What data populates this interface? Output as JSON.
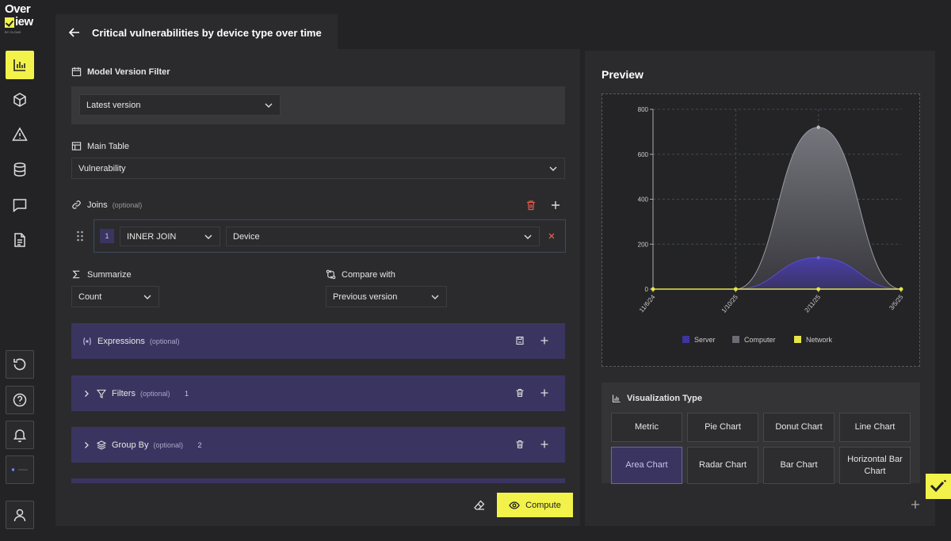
{
  "app": {
    "logo_line1": "Over",
    "logo_line2": "iew",
    "logo_tagline": "BY CLOUD"
  },
  "sidebar": {
    "items": [
      {
        "name": "charts",
        "icon": "bar-chart-icon",
        "active": true
      },
      {
        "name": "packages",
        "icon": "box-icon",
        "active": false
      },
      {
        "name": "alerts",
        "icon": "warning-icon",
        "active": false
      },
      {
        "name": "database",
        "icon": "database-icon",
        "active": false
      },
      {
        "name": "messages",
        "icon": "message-icon",
        "active": false
      },
      {
        "name": "documents",
        "icon": "document-icon",
        "active": false
      }
    ],
    "bottom": [
      {
        "name": "history",
        "icon": "history-icon"
      },
      {
        "name": "help",
        "icon": "help-icon"
      },
      {
        "name": "notifications",
        "icon": "bell-icon"
      },
      {
        "name": "workspace",
        "icon": "workspace-icon"
      },
      {
        "name": "profile",
        "icon": "user-icon"
      }
    ]
  },
  "header": {
    "title": "Critical vulnerabilities by device type over time"
  },
  "model_filter": {
    "label": "Model Version Filter",
    "value": "Latest version"
  },
  "main_table": {
    "label": "Main Table",
    "value": "Vulnerability"
  },
  "joins": {
    "label": "Joins",
    "optional": "(optional)",
    "rows": [
      {
        "index": "1",
        "type": "INNER JOIN",
        "table": "Device"
      }
    ]
  },
  "summarize": {
    "label": "Summarize",
    "value": "Count"
  },
  "compare": {
    "label": "Compare with",
    "value": "Previous version"
  },
  "sections": [
    {
      "name": "expressions",
      "label": "Expressions",
      "optional": "(optional)",
      "count": ""
    },
    {
      "name": "filters",
      "label": "Filters",
      "optional": "(optional)",
      "count": "1"
    },
    {
      "name": "group-by",
      "label": "Group By",
      "optional": "(optional)",
      "count": "2"
    }
  ],
  "actions": {
    "compute_label": "Compute"
  },
  "preview": {
    "title": "Preview"
  },
  "chart_data": {
    "type": "area",
    "x": [
      "11/6/24",
      "1/10/25",
      "2/11/25",
      "3/5/25"
    ],
    "series": [
      {
        "name": "Server",
        "color": "#3d35a0",
        "values": [
          0,
          0,
          140,
          0
        ]
      },
      {
        "name": "Computer",
        "color": "#6b6b73",
        "values": [
          0,
          0,
          720,
          0
        ]
      },
      {
        "name": "Network",
        "color": "#e6e64a",
        "values": [
          0,
          0,
          0,
          0
        ]
      }
    ],
    "y_ticks": [
      "0",
      "200",
      "400",
      "600",
      "800"
    ],
    "ylim": [
      0,
      800
    ],
    "grid": true,
    "legend_position": "bottom"
  },
  "visualization": {
    "label": "Visualization Type",
    "types": [
      {
        "label": "Metric",
        "active": false
      },
      {
        "label": "Pie Chart",
        "active": false
      },
      {
        "label": "Donut Chart",
        "active": false
      },
      {
        "label": "Line Chart",
        "active": false
      },
      {
        "label": "Area Chart",
        "active": true
      },
      {
        "label": "Radar Chart",
        "active": false
      },
      {
        "label": "Bar Chart",
        "active": false
      },
      {
        "label": "Horizontal Bar Chart",
        "active": false
      }
    ]
  }
}
